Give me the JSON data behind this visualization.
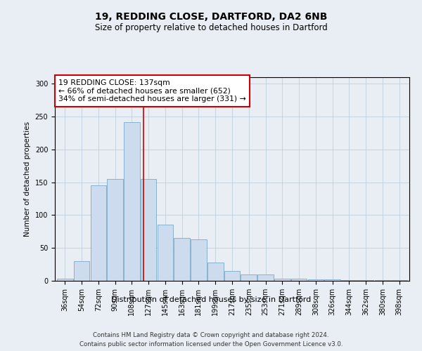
{
  "title1": "19, REDDING CLOSE, DARTFORD, DA2 6NB",
  "title2": "Size of property relative to detached houses in Dartford",
  "xlabel": "Distribution of detached houses by size in Dartford",
  "ylabel": "Number of detached properties",
  "categories": [
    "36sqm",
    "54sqm",
    "72sqm",
    "90sqm",
    "108sqm",
    "127sqm",
    "145sqm",
    "163sqm",
    "181sqm",
    "199sqm",
    "217sqm",
    "235sqm",
    "253sqm",
    "271sqm",
    "289sqm",
    "308sqm",
    "326sqm",
    "344sqm",
    "362sqm",
    "380sqm",
    "398sqm"
  ],
  "values": [
    3,
    30,
    145,
    155,
    242,
    155,
    85,
    65,
    63,
    28,
    15,
    10,
    10,
    3,
    3,
    2,
    2,
    1,
    1,
    1,
    1
  ],
  "bar_color": "#ccdcee",
  "bar_edge_color": "#7aaac8",
  "vline_index": 4.72,
  "annotation_line1": "19 REDDING CLOSE: 137sqm",
  "annotation_line2": "← 66% of detached houses are smaller (652)",
  "annotation_line3": "34% of semi-detached houses are larger (331) →",
  "annotation_box_color": "#ffffff",
  "annotation_box_edge_color": "#cc0000",
  "footer1": "Contains HM Land Registry data © Crown copyright and database right 2024.",
  "footer2": "Contains public sector information licensed under the Open Government Licence v3.0.",
  "ylim": [
    0,
    310
  ],
  "bg_color": "#e8eef4",
  "plot_bg_color": "#e8eef4"
}
